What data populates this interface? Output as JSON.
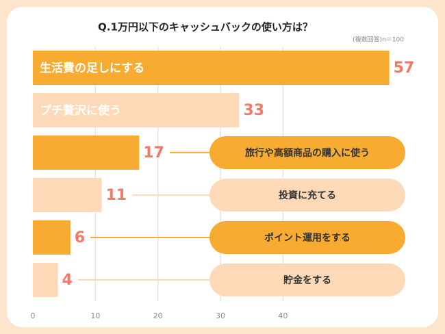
{
  "chart_data": {
    "type": "barh",
    "title": "Q.1万円以下のキャッシュバックの使い方は？",
    "subtitle": "(複数回答)n＝100",
    "categories": [
      "生活費の足しにする",
      "プチ贅沢に使う",
      "旅行や高額商品の購入に使う",
      "投資に充てる",
      "ポイント運用をする",
      "貯金をする"
    ],
    "values": [
      57,
      33,
      17,
      11,
      6,
      4
    ],
    "colors": [
      "#f7ab31",
      "#fdd9b7",
      "#f7ab31",
      "#fdd9b7",
      "#f7ab31",
      "#fdd9b7"
    ],
    "xlim": [
      0,
      60
    ],
    "xticks": [
      0,
      10,
      20,
      30,
      40
    ],
    "grid": true
  }
}
